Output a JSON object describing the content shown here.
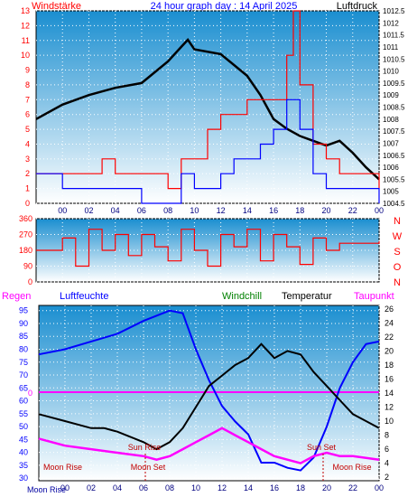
{
  "header": {
    "left": "Windstärke",
    "center": "24 hour graph day : 14 April 2025",
    "right": "Luftdruck"
  },
  "colors": {
    "wind_speed": "#ff0000",
    "wind_gust": "#0000ff",
    "pressure": "#000000",
    "direction": "#ff0000",
    "humidity": "#0000ff",
    "windchill": "#000000",
    "temperature": "#000000",
    "dewpoint": "#ff00ff",
    "rain": "#ff00ff",
    "panel_top": "#1a8ed0",
    "panel_bottom": "#ffffff"
  },
  "chart_data": [
    {
      "type": "line",
      "panel": "wind-pressure",
      "title": "24 hour graph day : 14 April 2025",
      "x_ticks": [
        "00",
        "02",
        "04",
        "06",
        "08",
        "10",
        "12",
        "14",
        "16",
        "18",
        "20",
        "22",
        "00"
      ],
      "y_left_label": "Windstärke",
      "y_left_ticks": [
        "0",
        "1",
        "2",
        "3",
        "4",
        "5",
        "6",
        "7",
        "8",
        "9",
        "10",
        "11",
        "12",
        "13"
      ],
      "y_left_range": [
        0,
        13
      ],
      "y_right_label": "Luftdruck",
      "y_right_ticks": [
        "1004.5",
        "1005",
        "1005.5",
        "1006",
        "1006.5",
        "1007",
        "1007.5",
        "1008",
        "1008.5",
        "1009",
        "1009.5",
        "1010",
        "1010.5",
        "1011",
        "1011.5",
        "1012",
        "1012.5"
      ],
      "y_right_range": [
        1004.5,
        1012.5
      ],
      "x_range_hours": [
        -2,
        24
      ],
      "series": [
        {
          "key": "pressure",
          "color": "#000000",
          "axis": "right",
          "points": [
            [
              -2,
              1008.0
            ],
            [
              0,
              1008.6
            ],
            [
              2,
              1009.0
            ],
            [
              4,
              1009.3
            ],
            [
              6,
              1009.5
            ],
            [
              8,
              1010.4
            ],
            [
              9,
              1011.0
            ],
            [
              9.5,
              1011.3
            ],
            [
              10,
              1010.9
            ],
            [
              12,
              1010.7
            ],
            [
              14,
              1009.8
            ],
            [
              15,
              1009.0
            ],
            [
              16,
              1008.0
            ],
            [
              17,
              1007.6
            ],
            [
              18,
              1007.3
            ],
            [
              19,
              1007.1
            ],
            [
              20,
              1006.9
            ],
            [
              21,
              1007.1
            ],
            [
              22,
              1006.6
            ],
            [
              23,
              1006.0
            ],
            [
              24,
              1005.5
            ]
          ]
        },
        {
          "key": "wind_speed",
          "color": "#ff0000",
          "axis": "left",
          "points": [
            [
              -2,
              2
            ],
            [
              0,
              2
            ],
            [
              2,
              2
            ],
            [
              3,
              3
            ],
            [
              4,
              2
            ],
            [
              6,
              2
            ],
            [
              8,
              1
            ],
            [
              9,
              3
            ],
            [
              10,
              3
            ],
            [
              11,
              5
            ],
            [
              12,
              6
            ],
            [
              13,
              6
            ],
            [
              14,
              7
            ],
            [
              15,
              7
            ],
            [
              16,
              7
            ],
            [
              17,
              10
            ],
            [
              17.5,
              13
            ],
            [
              18,
              8
            ],
            [
              19,
              4
            ],
            [
              20,
              3
            ],
            [
              21,
              2
            ],
            [
              22,
              2
            ],
            [
              24,
              1
            ]
          ]
        },
        {
          "key": "wind_gust",
          "color": "#0000ff",
          "axis": "left",
          "points": [
            [
              -2,
              2
            ],
            [
              0,
              1
            ],
            [
              2,
              1
            ],
            [
              4,
              1
            ],
            [
              6,
              0
            ],
            [
              8,
              0
            ],
            [
              9,
              2
            ],
            [
              10,
              1
            ],
            [
              11,
              1
            ],
            [
              12,
              2
            ],
            [
              13,
              3
            ],
            [
              14,
              3
            ],
            [
              15,
              4
            ],
            [
              16,
              5
            ],
            [
              17,
              7
            ],
            [
              18,
              5
            ],
            [
              19,
              2
            ],
            [
              20,
              1
            ],
            [
              21,
              1
            ],
            [
              22,
              1
            ],
            [
              24,
              0
            ]
          ]
        }
      ]
    },
    {
      "type": "line",
      "panel": "direction",
      "y_ticks": [
        "0",
        "90",
        "180",
        "270",
        "360"
      ],
      "y_range": [
        0,
        360
      ],
      "x_range_hours": [
        -2,
        24
      ],
      "direction_letters": [
        "N",
        "W",
        "S",
        "O",
        "N"
      ],
      "series": [
        {
          "key": "direction",
          "color": "#ff0000",
          "points": [
            [
              -2,
              180
            ],
            [
              0,
              250
            ],
            [
              1,
              90
            ],
            [
              2,
              300
            ],
            [
              3,
              180
            ],
            [
              4,
              270
            ],
            [
              5,
              150
            ],
            [
              6,
              270
            ],
            [
              7,
              200
            ],
            [
              8,
              120
            ],
            [
              9,
              300
            ],
            [
              10,
              180
            ],
            [
              11,
              90
            ],
            [
              12,
              270
            ],
            [
              13,
              200
            ],
            [
              14,
              300
            ],
            [
              15,
              120
            ],
            [
              16,
              270
            ],
            [
              17,
              200
            ],
            [
              18,
              100
            ],
            [
              19,
              250
            ],
            [
              20,
              180
            ],
            [
              21,
              220
            ],
            [
              22,
              220
            ],
            [
              23,
              220
            ],
            [
              24,
              230
            ]
          ]
        }
      ]
    },
    {
      "type": "line",
      "panel": "temperature-humidity",
      "legend": [
        "Regen",
        "Luftfeuchte",
        "Windchill",
        "Temperatur",
        "Taupunkt"
      ],
      "x_ticks": [
        "00",
        "02",
        "04",
        "06",
        "08",
        "10",
        "12",
        "14",
        "16",
        "18",
        "20",
        "22",
        "00"
      ],
      "y_left_ticks": [
        "30",
        "35",
        "40",
        "45",
        "50",
        "55",
        "60",
        "65",
        "70",
        "75",
        "80",
        "85",
        "90",
        "95"
      ],
      "y_left_range": [
        29,
        97
      ],
      "y_right_ticks": [
        "2",
        "4",
        "6",
        "8",
        "10",
        "12",
        "14",
        "16",
        "18",
        "20",
        "22",
        "24",
        "26"
      ],
      "y_right_range": [
        1.5,
        26.5
      ],
      "x_range_hours": [
        -2,
        24
      ],
      "rain_zero_label": "0",
      "annotations": [
        "Sun Rise",
        "Sun Set",
        "Moon Rise",
        "Moon Set",
        "Moon Rise",
        "Moon Rise"
      ],
      "series": [
        {
          "key": "humidity",
          "color": "#0000ff",
          "axis": "left",
          "points": [
            [
              -2,
              78
            ],
            [
              0,
              80
            ],
            [
              2,
              83
            ],
            [
              4,
              86
            ],
            [
              6,
              91
            ],
            [
              8,
              95
            ],
            [
              9,
              94
            ],
            [
              10,
              80
            ],
            [
              11,
              68
            ],
            [
              12,
              58
            ],
            [
              13,
              52
            ],
            [
              14,
              47
            ],
            [
              15,
              36
            ],
            [
              16,
              36
            ],
            [
              17,
              34
            ],
            [
              18,
              33
            ],
            [
              19,
              38
            ],
            [
              20,
              50
            ],
            [
              21,
              65
            ],
            [
              22,
              75
            ],
            [
              23,
              82
            ],
            [
              24,
              83
            ]
          ]
        },
        {
          "key": "temperature",
          "color": "#000000",
          "axis": "right",
          "points": [
            [
              -2,
              11
            ],
            [
              0,
              10
            ],
            [
              2,
              9
            ],
            [
              3,
              9
            ],
            [
              4,
              8.5
            ],
            [
              6,
              7
            ],
            [
              7,
              6
            ],
            [
              8,
              7
            ],
            [
              9,
              9
            ],
            [
              10,
              12
            ],
            [
              11,
              15
            ],
            [
              12,
              16.5
            ],
            [
              13,
              18
            ],
            [
              14,
              19
            ],
            [
              15,
              21
            ],
            [
              16,
              19
            ],
            [
              17,
              20
            ],
            [
              18,
              19.5
            ],
            [
              19,
              17
            ],
            [
              20,
              15
            ],
            [
              21,
              13
            ],
            [
              22,
              11
            ],
            [
              23,
              10
            ],
            [
              24,
              9
            ]
          ]
        },
        {
          "key": "dewpoint",
          "color": "#ff00ff",
          "axis": "right",
          "points": [
            [
              -2,
              7.5
            ],
            [
              0,
              6.5
            ],
            [
              2,
              6
            ],
            [
              4,
              5.5
            ],
            [
              6,
              5
            ],
            [
              7,
              4.5
            ],
            [
              8,
              5
            ],
            [
              9,
              6
            ],
            [
              10,
              7
            ],
            [
              11,
              8
            ],
            [
              12,
              9
            ],
            [
              13,
              8
            ],
            [
              14,
              7
            ],
            [
              15,
              6
            ],
            [
              16,
              5
            ],
            [
              17,
              4.5
            ],
            [
              18,
              4
            ],
            [
              19,
              5
            ],
            [
              20,
              5.5
            ],
            [
              21,
              5
            ],
            [
              22,
              5
            ],
            [
              24,
              4.5
            ]
          ]
        }
      ]
    }
  ]
}
